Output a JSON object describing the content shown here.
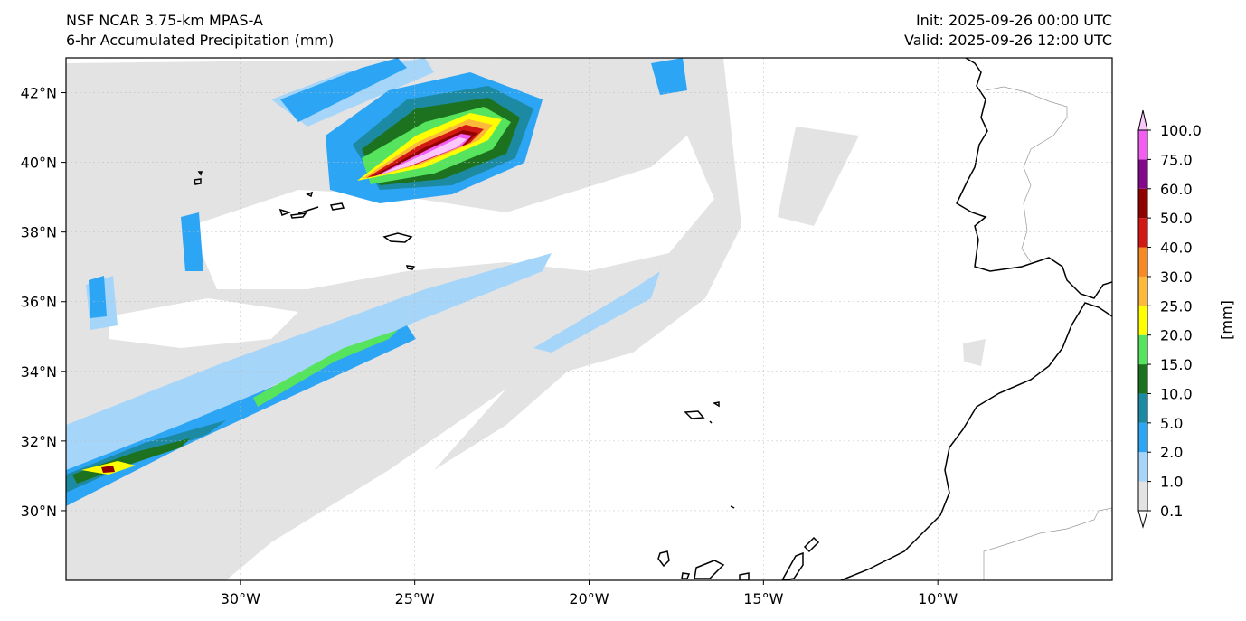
{
  "header": {
    "title_left": [
      "NSF NCAR 3.75-km MPAS-A",
      "6-hr Accumulated Precipitation (mm)"
    ],
    "title_right": [
      "Init: 2025-09-26 00:00 UTC",
      "Valid: 2025-09-26 12:00 UTC"
    ]
  },
  "map": {
    "lon_range": [
      -35,
      -5
    ],
    "lat_range": [
      28,
      43
    ],
    "lat_ticks": [
      {
        "value": 42,
        "label": "42°N"
      },
      {
        "value": 40,
        "label": "40°N"
      },
      {
        "value": 38,
        "label": "38°N"
      },
      {
        "value": 36,
        "label": "36°N"
      },
      {
        "value": 34,
        "label": "34°N"
      },
      {
        "value": 32,
        "label": "32°N"
      },
      {
        "value": 30,
        "label": "30°N"
      }
    ],
    "lon_ticks": [
      {
        "value": -30,
        "label": "30°W"
      },
      {
        "value": -25,
        "label": "25°W"
      },
      {
        "value": -20,
        "label": "20°W"
      },
      {
        "value": -15,
        "label": "15°W"
      },
      {
        "value": -10,
        "label": "10°W"
      }
    ],
    "colors": {
      "trace": "#e3e3e3",
      "ocean": "#ffffff",
      "coast": "#000000",
      "border": "#999999"
    }
  },
  "colorbar": {
    "label": "[mm]",
    "levels": [
      "0.1",
      "1.0",
      "2.0",
      "5.0",
      "10.0",
      "15.0",
      "20.0",
      "25.0",
      "30.0",
      "40.0",
      "50.0",
      "60.0",
      "75.0",
      "100.0"
    ],
    "colors": [
      "#e3e3e3",
      "#a6d5fa",
      "#2da5f5",
      "#1c8aa3",
      "#1c721e",
      "#56e35d",
      "#ffff00",
      "#fdb939",
      "#f58a24",
      "#d21815",
      "#900202",
      "#83098a",
      "#f25ef0"
    ],
    "under_color": "#ffffff",
    "over_color": "#fcc8fc"
  }
}
